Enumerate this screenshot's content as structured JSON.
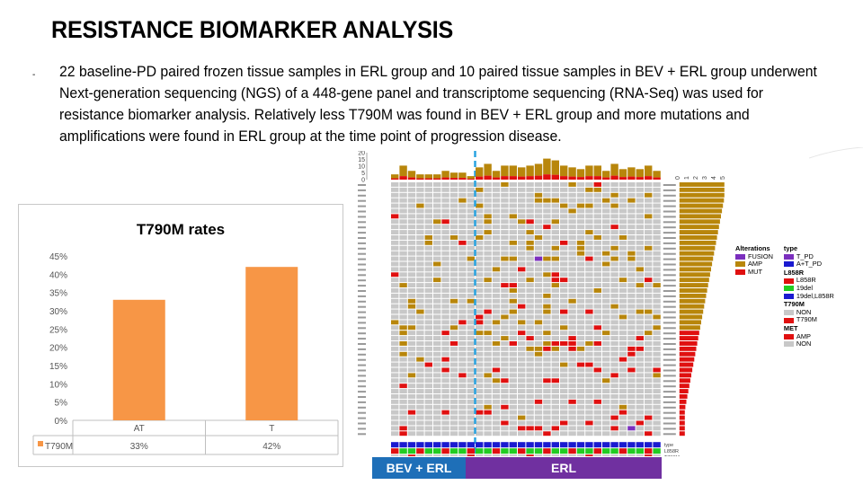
{
  "slide": {
    "title": "RESISTANCE BIOMARKER ANALYSIS",
    "bullet": "-",
    "paragraph": "22 baseline-PD paired frozen tissue samples in ERL group and 10 paired tissue samples in BEV + ERL group underwent Next-generation sequencing (NGS) of a 448-gene panel and transcriptome sequencing (RNA-Seq) was used for resistance biomarker analysis. Relatively less T790M was found in BEV + ERL group and more mutations and amplifications were found in ERL group at the time point of progression disease."
  },
  "chart_data": [
    {
      "type": "bar",
      "title": "T790M rates",
      "categories": [
        "AT",
        "T"
      ],
      "series": [
        {
          "name": "T790M",
          "values": [
            33,
            42
          ],
          "labels": [
            "33%",
            "42%"
          ]
        }
      ],
      "ylim": [
        0,
        45
      ],
      "yticks": [
        "0%",
        "5%",
        "10%",
        "15%",
        "20%",
        "25%",
        "30%",
        "35%",
        "40%",
        "45%"
      ],
      "colors": {
        "bar": "#f79646"
      },
      "data_table": true,
      "grid": false
    },
    {
      "type": "heatmap",
      "title": "",
      "n_samples": 32,
      "n_genes": 48,
      "groups": [
        {
          "name": "BEV + ERL",
          "samples": 10,
          "color": "#1e6fb8"
        },
        {
          "name": "ERL",
          "samples": 22,
          "color": "#7030a0"
        }
      ],
      "top_bar_yticks": [
        "0",
        "5",
        "10",
        "15",
        "20"
      ],
      "side_bar_xticks": [
        "0",
        "1",
        "2",
        "3",
        "4",
        "5"
      ],
      "annotation_tracks": [
        "type",
        "L858R",
        "T790M",
        "MET"
      ]
    }
  ],
  "legend": {
    "alterations_title": "Alterations",
    "alterations": [
      {
        "label": "FUSION",
        "color": "#7b2fbe"
      },
      {
        "label": "AMP",
        "color": "#b8860b"
      },
      {
        "label": "MUT",
        "color": "#e01010"
      }
    ],
    "type_title": "type",
    "type": [
      {
        "label": "T_PD",
        "color": "#7b2fbe"
      },
      {
        "label": "A+T_PD",
        "color": "#1a1ad0"
      }
    ],
    "l858r_title": "L858R",
    "l858r": [
      {
        "label": "L858R",
        "color": "#e01010"
      },
      {
        "label": "19del",
        "color": "#22cc22"
      },
      {
        "label": "19del,L858R",
        "color": "#1a1ad0"
      }
    ],
    "t790m_title": "T790M",
    "t790m": [
      {
        "label": "NON",
        "color": "#c8c8c8"
      },
      {
        "label": "T790M",
        "color": "#e01010"
      }
    ],
    "met_title": "MET",
    "met": [
      {
        "label": "AMP",
        "color": "#e01010"
      },
      {
        "label": "NON",
        "color": "#c8c8c8"
      }
    ]
  },
  "groups_bar": {
    "bev": "BEV + ERL",
    "erl": "ERL"
  }
}
